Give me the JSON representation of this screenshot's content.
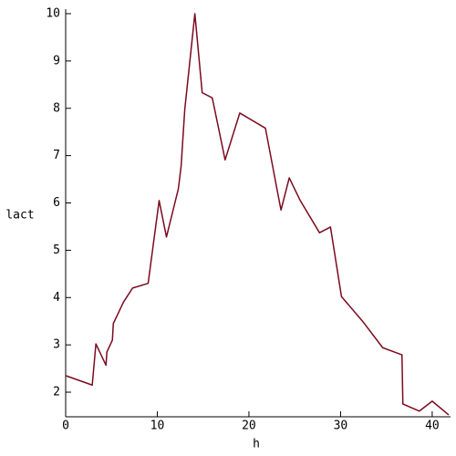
{
  "chart_data": {
    "type": "line",
    "x_label": "h",
    "y_label": "lact",
    "x": [
      0,
      2.9,
      3.3,
      4.4,
      4.5,
      5.1,
      5.2,
      6.3,
      7.3,
      9.0,
      10.2,
      11.0,
      12.3,
      12.6,
      13.0,
      14.1,
      14.9,
      16.0,
      17.4,
      19.0,
      21.8,
      23.2,
      23.5,
      24.4,
      25.6,
      27.7,
      28.9,
      30.1,
      32.4,
      34.6,
      36.7,
      36.8,
      38.6,
      40.0,
      41.8
    ],
    "series": [
      {
        "color": "#7b0a1e",
        "values": [
          2.35,
          2.15,
          3.02,
          2.57,
          2.85,
          3.1,
          3.45,
          3.9,
          4.2,
          4.3,
          6.05,
          5.28,
          6.3,
          6.78,
          7.98,
          10,
          8.33,
          8.22,
          6.91,
          7.9,
          7.58,
          6.15,
          5.85,
          6.53,
          6.05,
          5.37,
          5.49,
          4.02,
          3.5,
          2.94,
          2.79,
          1.75,
          1.6,
          1.81,
          1.52
        ]
      }
    ],
    "xlim": [
      0,
      42
    ],
    "ylim": [
      1.48,
      10
    ],
    "xticks": [
      0,
      10,
      20,
      30,
      40
    ],
    "yticks": [
      2,
      3,
      4,
      5,
      6,
      7,
      8,
      9,
      10
    ]
  }
}
